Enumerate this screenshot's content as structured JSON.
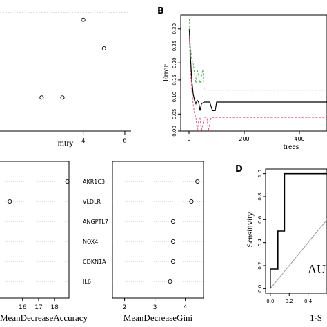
{
  "panel_labels": {
    "B": "B",
    "D": "D"
  },
  "chart_data": [
    {
      "id": "mtry",
      "type": "scatter",
      "xlabel": "mtry",
      "x_ticks": [
        4,
        6
      ],
      "xlim": [
        0,
        6.3
      ],
      "ylim": [
        0.1,
        0.34
      ],
      "points": [
        {
          "x": 2,
          "y": 0.165
        },
        {
          "x": 3,
          "y": 0.165
        },
        {
          "x": 4,
          "y": 0.315
        },
        {
          "x": 5,
          "y": 0.26
        }
      ]
    },
    {
      "id": "error",
      "type": "line",
      "xlabel": "trees",
      "ylabel": "Error",
      "xlim": [
        -30,
        500
      ],
      "ylim": [
        0,
        0.34
      ],
      "x_ticks": [
        0,
        200,
        400
      ],
      "y_ticks": [
        0.0,
        0.05,
        0.1,
        0.15,
        0.2,
        0.25,
        0.3
      ],
      "y_tick_labels": [
        "0.00",
        "0.05",
        "0.10",
        "0.15",
        "0.20",
        "0.25",
        "0.30"
      ],
      "series": [
        {
          "color": "#000000",
          "x": [
            1,
            5,
            10,
            15,
            20,
            25,
            30,
            35,
            40,
            45,
            55,
            65,
            75,
            85,
            95,
            100,
            500
          ],
          "y": [
            0.3,
            0.22,
            0.15,
            0.11,
            0.09,
            0.08,
            0.09,
            0.085,
            0.06,
            0.08,
            0.085,
            0.085,
            0.085,
            0.06,
            0.06,
            0.085,
            0.085
          ]
        },
        {
          "color": "#e0407a",
          "x": [
            1,
            5,
            10,
            15,
            20,
            25,
            30,
            35,
            40,
            45,
            55,
            65,
            70,
            80,
            500
          ],
          "y": [
            0.28,
            0.18,
            0.12,
            0.08,
            0.05,
            0.04,
            0.0,
            0.03,
            0.04,
            0.0,
            0.04,
            0.04,
            0.0,
            0.04,
            0.04
          ]
        },
        {
          "color": "#3fae49",
          "x": [
            1,
            5,
            10,
            15,
            20,
            25,
            30,
            40,
            50,
            55,
            60,
            500
          ],
          "y": [
            0.33,
            0.25,
            0.21,
            0.2,
            0.17,
            0.14,
            0.18,
            0.14,
            0.18,
            0.12,
            0.12,
            0.12
          ]
        }
      ]
    },
    {
      "id": "accuracy",
      "type": "scatter",
      "xlabel": "MeanDecreaseAccuracy",
      "x_ticks": [
        16,
        17,
        18
      ],
      "x_tick_labels": [
        "16",
        "17",
        "18"
      ],
      "xlim": [
        14.5,
        18.9
      ],
      "rows": [
        {
          "label": "AKR1C3",
          "value": 18.8
        },
        {
          "label": "VLDLR",
          "value": 15.2
        }
      ]
    },
    {
      "id": "gini",
      "type": "scatter",
      "xlabel": "MeanDecreaseGini",
      "x_ticks": [
        2,
        3,
        4
      ],
      "xlim": [
        1.6,
        4.6
      ],
      "rows": [
        {
          "label": "AKR1C3",
          "value": 4.4
        },
        {
          "label": "VLDLR",
          "value": 4.2
        },
        {
          "label": "ANGPTL7",
          "value": 3.6
        },
        {
          "label": "NOX4",
          "value": 3.6
        },
        {
          "label": "CDKN1A",
          "value": 3.6
        },
        {
          "label": "IL6",
          "value": 3.5
        }
      ]
    },
    {
      "id": "roc",
      "type": "line",
      "ylabel": "Sensitivity",
      "xlabel": "1-S",
      "annotation": "AU",
      "xlim": [
        -0.05,
        0.6
      ],
      "ylim": [
        -0.04,
        1.04
      ],
      "x_ticks": [
        0.0,
        0.2,
        0.4
      ],
      "x_tick_labels": [
        "0.0",
        "0.2",
        "0.4"
      ],
      "y_ticks": [
        0.0,
        0.2,
        0.4,
        0.6,
        0.8,
        1.0
      ],
      "y_tick_labels": [
        "0.0",
        "0.2",
        "0.4",
        "0.6",
        "0.8",
        "1.0"
      ],
      "roc_x": [
        0.0,
        0.0,
        0.08,
        0.08,
        0.15,
        0.15,
        0.4,
        0.6
      ],
      "roc_y": [
        0.0,
        0.17,
        0.17,
        0.5,
        0.5,
        1.0,
        1.0,
        1.0
      ]
    }
  ]
}
